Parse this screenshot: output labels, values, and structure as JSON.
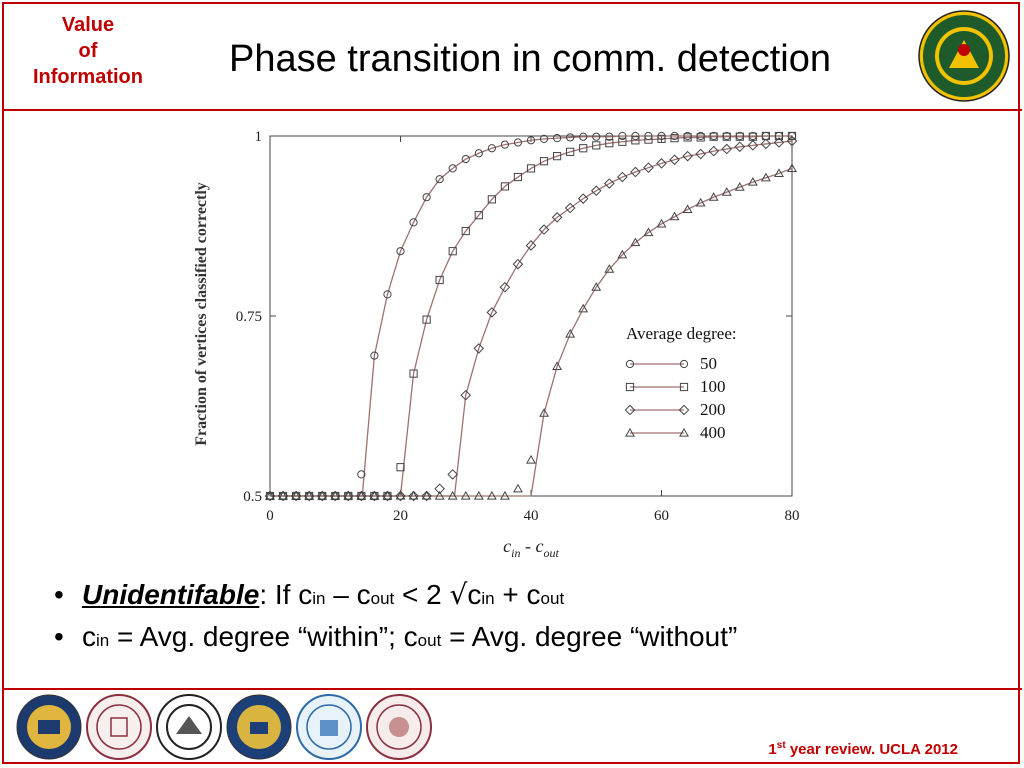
{
  "header": {
    "voi_lines": [
      "Value",
      "of",
      "Information"
    ],
    "title": "Phase transition in comm. detection"
  },
  "chart_data": {
    "type": "scatter",
    "xlabel_main": "c",
    "xlabel_sub1": "in",
    "xlabel_minus": " - c",
    "xlabel_sub2": "out",
    "ylabel": "Fraction of vertices classified correctly",
    "xlim": [
      0,
      80
    ],
    "ylim": [
      0.5,
      1.0
    ],
    "x_ticks": [
      0,
      20,
      40,
      60,
      80
    ],
    "x_tick_labels": [
      "0",
      "20",
      "40",
      "60",
      "80"
    ],
    "y_ticks": [
      0.5,
      0.75,
      1.0
    ],
    "y_tick_labels": [
      "0.5",
      "0.75",
      "1"
    ],
    "grid": false,
    "legend": {
      "title": "Average degree:",
      "position": "right"
    },
    "marker_x": [
      0,
      2,
      4,
      6,
      8,
      10,
      12,
      14,
      16,
      18,
      20,
      22,
      24,
      26,
      28,
      30,
      32,
      34,
      36,
      38,
      40,
      42,
      44,
      46,
      48,
      50,
      52,
      54,
      56,
      58,
      60,
      62,
      64,
      66,
      68,
      70,
      72,
      74,
      76,
      78,
      80
    ],
    "series": [
      {
        "name": "50",
        "marker": "circle",
        "threshold": 14.14,
        "values": [
          0.5,
          0.5,
          0.5,
          0.5,
          0.5,
          0.5,
          0.5,
          0.53,
          0.695,
          0.78,
          0.84,
          0.88,
          0.915,
          0.94,
          0.955,
          0.968,
          0.976,
          0.983,
          0.988,
          0.991,
          0.994,
          0.996,
          0.997,
          0.998,
          0.999,
          0.999,
          0.999,
          1.0,
          1.0,
          1.0,
          1.0,
          1.0,
          1.0,
          1.0,
          1.0,
          1.0,
          1.0,
          1.0,
          1.0,
          1.0,
          1.0
        ]
      },
      {
        "name": "100",
        "marker": "square",
        "threshold": 20.0,
        "values": [
          0.5,
          0.5,
          0.5,
          0.5,
          0.5,
          0.5,
          0.5,
          0.5,
          0.5,
          0.5,
          0.54,
          0.67,
          0.745,
          0.8,
          0.84,
          0.868,
          0.89,
          0.912,
          0.93,
          0.943,
          0.955,
          0.965,
          0.972,
          0.978,
          0.983,
          0.987,
          0.99,
          0.992,
          0.994,
          0.995,
          0.996,
          0.997,
          0.998,
          0.998,
          0.999,
          0.999,
          0.999,
          0.999,
          1.0,
          1.0,
          1.0
        ]
      },
      {
        "name": "200",
        "marker": "diamond",
        "threshold": 28.28,
        "values": [
          0.5,
          0.5,
          0.5,
          0.5,
          0.5,
          0.5,
          0.5,
          0.5,
          0.5,
          0.5,
          0.5,
          0.5,
          0.5,
          0.51,
          0.53,
          0.64,
          0.705,
          0.755,
          0.79,
          0.822,
          0.848,
          0.87,
          0.887,
          0.9,
          0.913,
          0.924,
          0.934,
          0.943,
          0.95,
          0.956,
          0.962,
          0.967,
          0.972,
          0.975,
          0.979,
          0.982,
          0.985,
          0.987,
          0.989,
          0.991,
          0.993
        ]
      },
      {
        "name": "400",
        "marker": "triangle",
        "threshold": 40.0,
        "values": [
          0.5,
          0.5,
          0.5,
          0.5,
          0.5,
          0.5,
          0.5,
          0.5,
          0.5,
          0.5,
          0.5,
          0.5,
          0.5,
          0.5,
          0.5,
          0.5,
          0.5,
          0.5,
          0.5,
          0.51,
          0.55,
          0.615,
          0.68,
          0.725,
          0.76,
          0.79,
          0.815,
          0.835,
          0.852,
          0.866,
          0.878,
          0.888,
          0.898,
          0.907,
          0.915,
          0.922,
          0.929,
          0.936,
          0.942,
          0.948,
          0.955
        ]
      }
    ]
  },
  "bullets": {
    "b1_keyword": "Unidentifable",
    "b1_text1": ": If c",
    "b1_sub_in": "in",
    "b1_text2": " – c",
    "b1_sub_out": "out",
    "b1_text3": " < 2 ",
    "b1_sqrt": "√",
    "b1_text4": "c",
    "b1_sub_in2": "in",
    "b1_text5": " + c",
    "b1_sub_out2": "out",
    "b2_c1": "c",
    "b2_sub_in": "in",
    "b2_text1": " = Avg. degree “within”; c",
    "b2_sub_out": "out",
    "b2_text2": " = Avg. degree “without”"
  },
  "footer": {
    "ordinal": "1",
    "ordinal_sup": "st",
    "text": " year review. UCLA 2012"
  },
  "colors": {
    "accent": "#c00000",
    "curve": "#a07070",
    "marker": "#444444"
  },
  "icons": {
    "army_seal": "army-research-office-seal-icon",
    "university_seals": [
      "university-of-michigan-seal-icon",
      "mit-seal-icon",
      "ohio-state-seal-icon",
      "uc-berkeley-seal-icon",
      "ucla-seal-icon",
      "arizona-state-seal-icon"
    ]
  }
}
